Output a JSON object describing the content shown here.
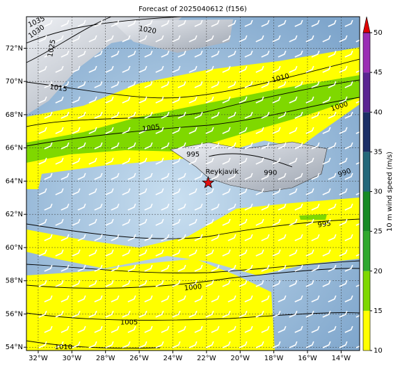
{
  "map": {
    "title": "Forecast of 2025040612 (f156)",
    "lon_range": [
      -32.7,
      -12.9
    ],
    "lat_range": [
      53.8,
      73.9
    ],
    "lon_ticks": [
      {
        "value": -32,
        "label": "32°W"
      },
      {
        "value": -30,
        "label": "30°W"
      },
      {
        "value": -28,
        "label": "28°W"
      },
      {
        "value": -26,
        "label": "26°W"
      },
      {
        "value": -24,
        "label": "24°W"
      },
      {
        "value": -22,
        "label": "22°W"
      },
      {
        "value": -20,
        "label": "20°W"
      },
      {
        "value": -18,
        "label": "18°W"
      },
      {
        "value": -16,
        "label": "16°W"
      },
      {
        "value": -14,
        "label": "14°W"
      }
    ],
    "lat_ticks": [
      {
        "value": 54,
        "label": "54°N"
      },
      {
        "value": 56,
        "label": "56°N"
      },
      {
        "value": 58,
        "label": "58°N"
      },
      {
        "value": 60,
        "label": "60°N"
      },
      {
        "value": 62,
        "label": "62°N"
      },
      {
        "value": 64,
        "label": "64°N"
      },
      {
        "value": 66,
        "label": "66°N"
      },
      {
        "value": 68,
        "label": "68°N"
      },
      {
        "value": 70,
        "label": "70°N"
      },
      {
        "value": 72,
        "label": "72°N"
      }
    ],
    "grid": true,
    "isobar_labels": [
      {
        "label": "1035",
        "lon": -32.1,
        "lat": 73.6,
        "angle": -25
      },
      {
        "label": "1030",
        "lon": -32.1,
        "lat": 73.0,
        "angle": -35
      },
      {
        "label": "1025",
        "lon": -31.2,
        "lat": 72.0,
        "angle": -80
      },
      {
        "label": "1020",
        "lon": -25.5,
        "lat": 73.1,
        "angle": 10
      },
      {
        "label": "1015",
        "lon": -30.8,
        "lat": 69.6,
        "angle": 8
      },
      {
        "label": "1010",
        "lon": -17.6,
        "lat": 70.2,
        "angle": -15
      },
      {
        "label": "1005",
        "lon": -25.3,
        "lat": 67.2,
        "angle": -8
      },
      {
        "label": "1000",
        "lon": -14.1,
        "lat": 68.5,
        "angle": -18
      },
      {
        "label": "995",
        "lon": -22.8,
        "lat": 65.6,
        "angle": 0
      },
      {
        "label": "990",
        "lon": -18.2,
        "lat": 64.5,
        "angle": 0
      },
      {
        "label": "990",
        "lon": -13.8,
        "lat": 64.5,
        "angle": -20
      },
      {
        "label": "995",
        "lon": -15.0,
        "lat": 61.4,
        "angle": -8
      },
      {
        "label": "1000",
        "lon": -22.8,
        "lat": 57.6,
        "angle": -6
      },
      {
        "label": "1005",
        "lon": -26.6,
        "lat": 55.5,
        "angle": 0
      },
      {
        "label": "1010",
        "lon": -30.5,
        "lat": 54.0,
        "angle": 0
      }
    ],
    "city": {
      "name": "Reykjavik",
      "lon": -21.9,
      "lat": 63.9,
      "color": "#e01010"
    },
    "colorbar": {
      "label": "10 m wind speed (m/s)",
      "range": [
        10,
        50
      ],
      "levels": [
        10,
        15,
        20,
        25,
        30,
        35,
        40,
        45,
        50
      ],
      "colors": [
        "#ffff00",
        "#7fd800",
        "#2fa82f",
        "#168a26",
        "#24687a",
        "#1c2f66",
        "#5a2492",
        "#9a2eb4"
      ],
      "extend_color": "#e00000",
      "ticks": [
        10,
        15,
        20,
        25,
        30,
        35,
        40,
        45,
        50
      ]
    }
  }
}
